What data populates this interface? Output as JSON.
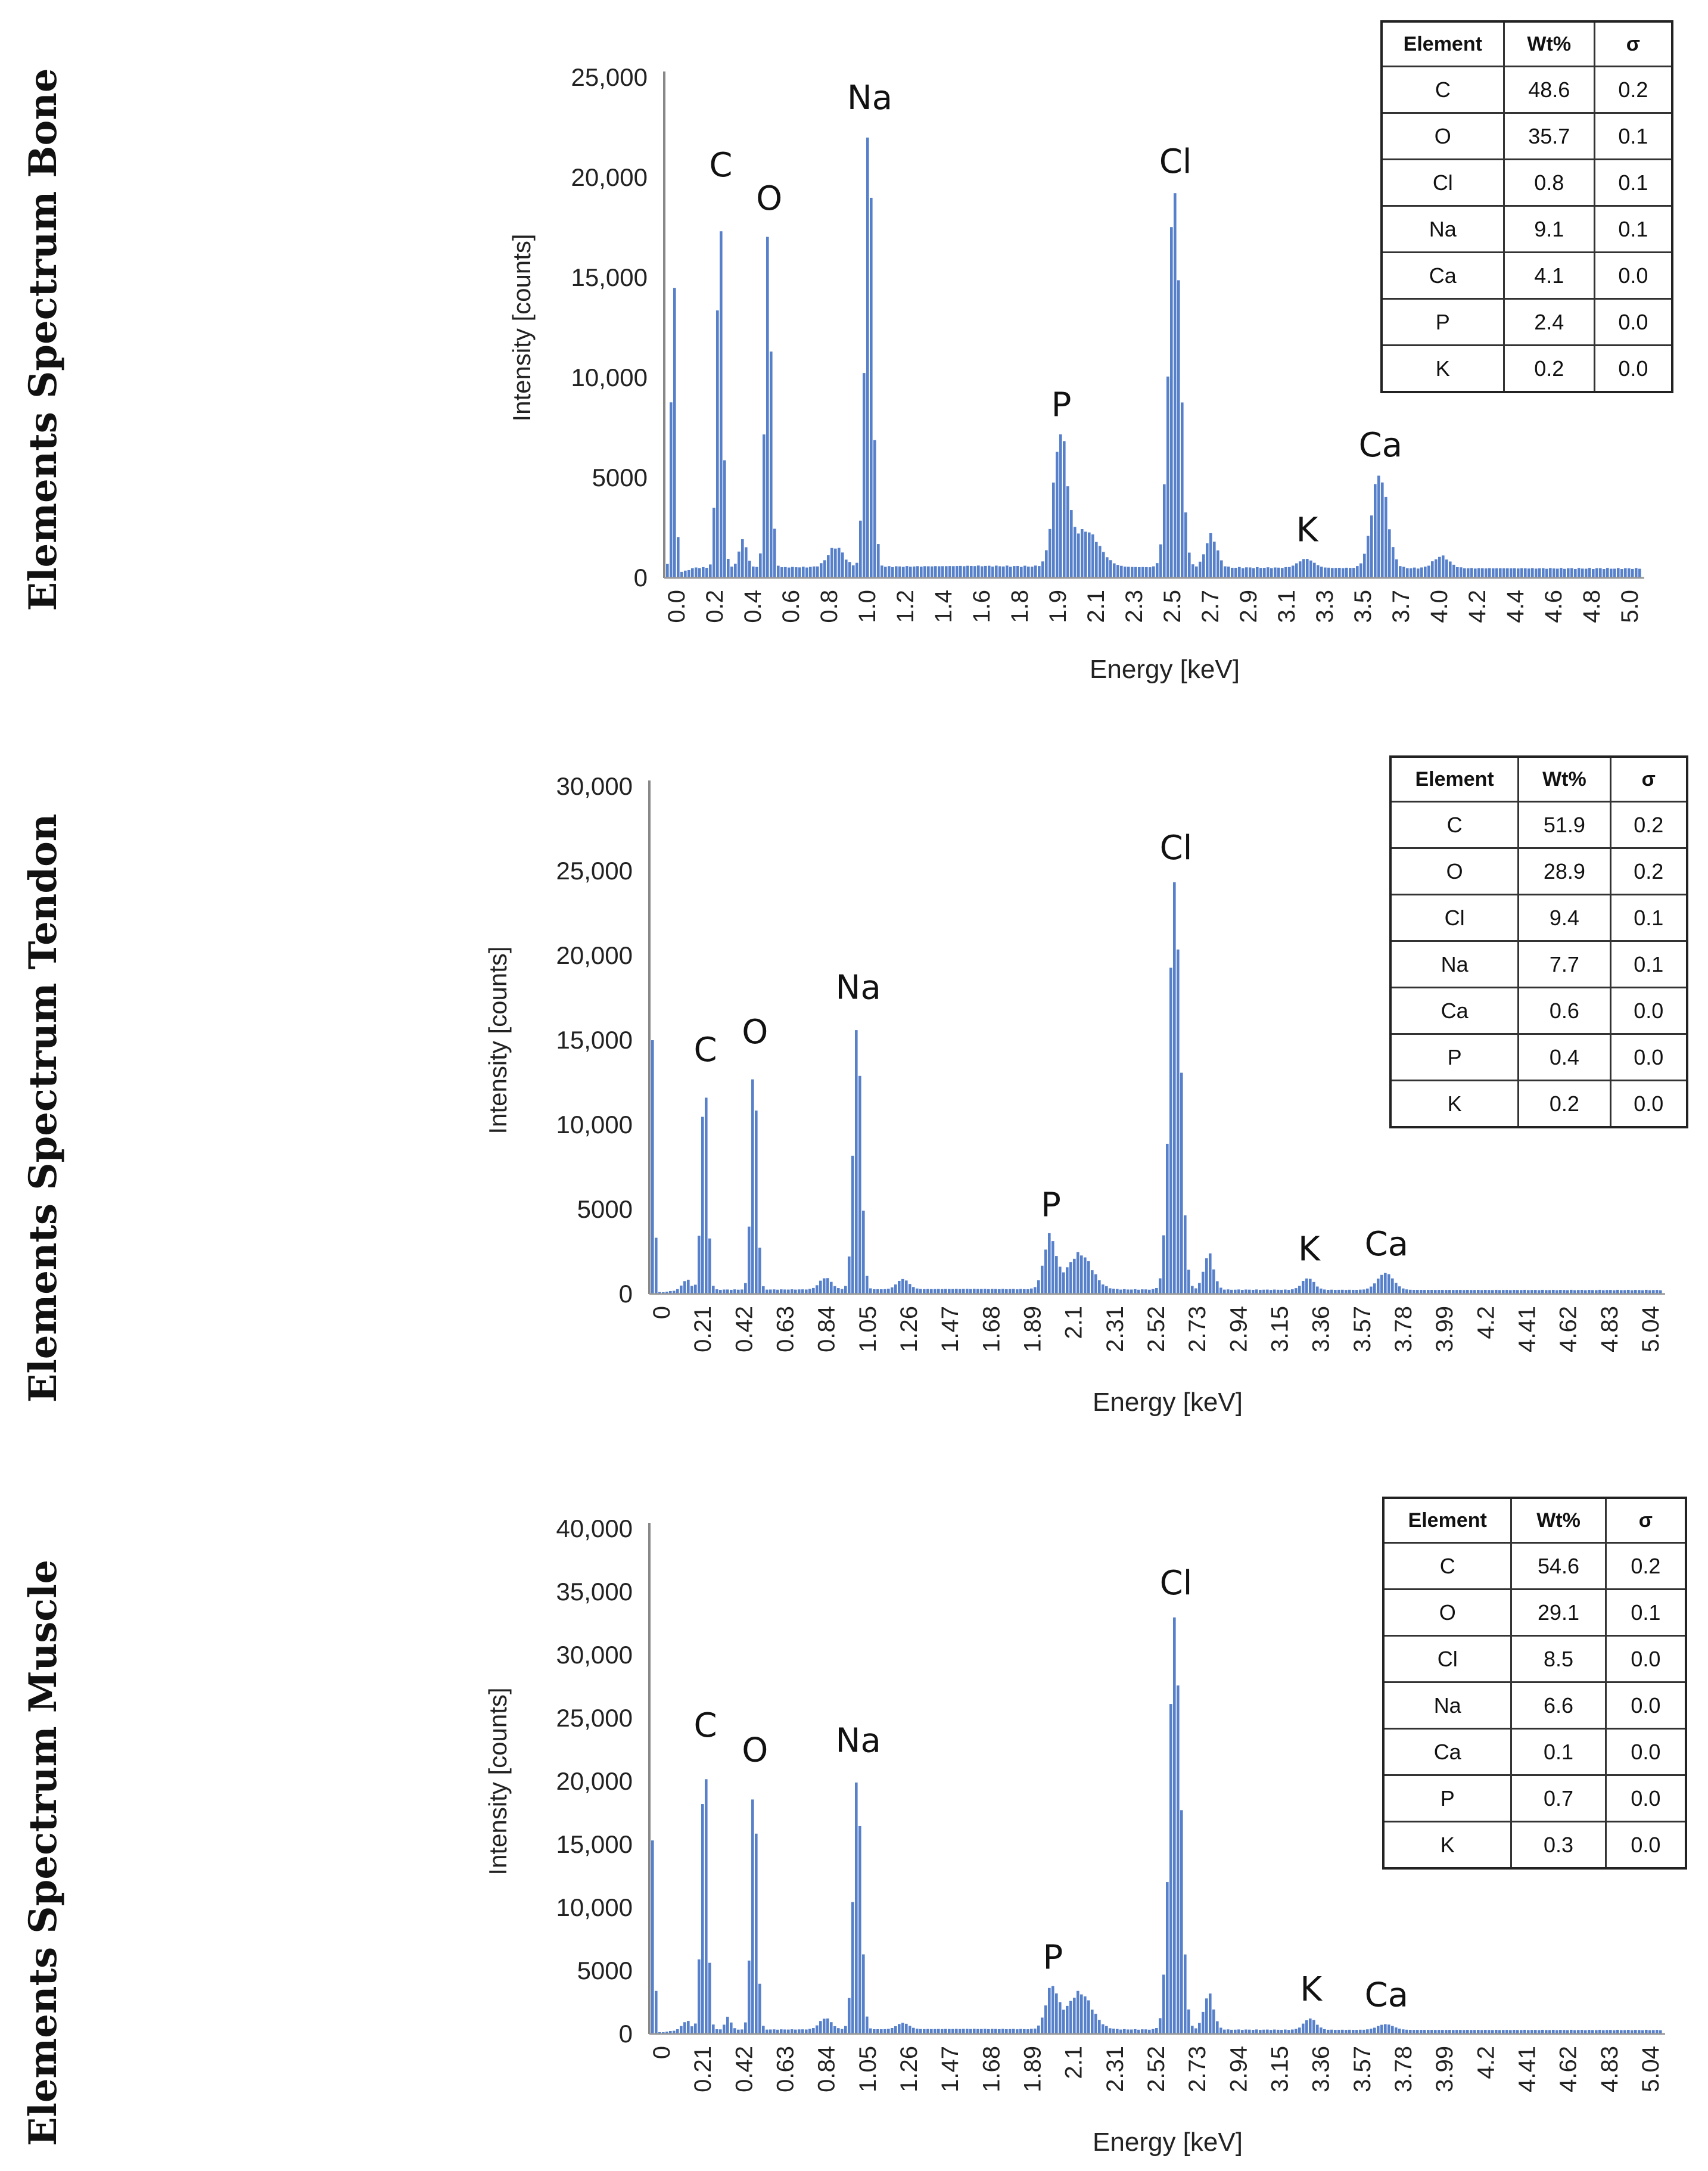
{
  "row_labels": [
    "Elements Spectrum Bone",
    "Elements Spectrum Tendon",
    "Elements Spectrum Muscle"
  ],
  "table_headers": [
    "Element",
    "Wt%",
    "σ"
  ],
  "tables": [
    [
      [
        "C",
        "48.6",
        "0.2"
      ],
      [
        "O",
        "35.7",
        "0.1"
      ],
      [
        "Cl",
        "0.8",
        "0.1"
      ],
      [
        "Na",
        "9.1",
        "0.1"
      ],
      [
        "Ca",
        "4.1",
        "0.0"
      ],
      [
        "P",
        "2.4",
        "0.0"
      ],
      [
        "K",
        "0.2",
        "0.0"
      ]
    ],
    [
      [
        "C",
        "51.9",
        "0.2"
      ],
      [
        "O",
        "28.9",
        "0.2"
      ],
      [
        "Cl",
        "9.4",
        "0.1"
      ],
      [
        "Na",
        "7.7",
        "0.1"
      ],
      [
        "Ca",
        "0.6",
        "0.0"
      ],
      [
        "P",
        "0.4",
        "0.0"
      ],
      [
        "K",
        "0.2",
        "0.0"
      ]
    ],
    [
      [
        "C",
        "54.6",
        "0.2"
      ],
      [
        "O",
        "29.1",
        "0.1"
      ],
      [
        "Cl",
        "8.5",
        "0.0"
      ],
      [
        "Na",
        "6.6",
        "0.0"
      ],
      [
        "Ca",
        "0.1",
        "0.0"
      ],
      [
        "P",
        "0.7",
        "0.0"
      ],
      [
        "K",
        "0.3",
        "0.0"
      ]
    ]
  ],
  "chart_data": [
    {
      "type": "bar",
      "title": "Elements Spectrum Bone",
      "xlabel": "Energy [keV]",
      "ylabel": "Intensity [counts]",
      "xlim": [
        0,
        5.05
      ],
      "ylim": [
        0,
        25000
      ],
      "yticks": [
        0,
        5000,
        10000,
        15000,
        20000,
        25000
      ],
      "ytick_labels": [
        "0",
        "5000",
        "10,000",
        "15,000",
        "20,000",
        "25,000"
      ],
      "xtick_labels": [
        "0.0",
        "0.2",
        "0.4",
        "0.6",
        "0.8",
        "1.0",
        "1.2",
        "1.4",
        "1.6",
        "1.8",
        "1.9",
        "2.1",
        "2.3",
        "2.5",
        "2.7",
        "2.9",
        "3.1",
        "3.3",
        "3.5",
        "3.7",
        "4.0",
        "4.2",
        "4.4",
        "4.6",
        "4.8",
        "5.0"
      ],
      "color": "#4472c4",
      "baseline_counts": 600,
      "peaks": [
        {
          "label": "",
          "x": 0.04,
          "y": 15500,
          "w": 0.012
        },
        {
          "label": "C",
          "x": 0.28,
          "y": 17800,
          "w": 0.016
        },
        {
          "label": "",
          "x": 0.4,
          "y": 1400,
          "w": 0.02
        },
        {
          "label": "O",
          "x": 0.53,
          "y": 16900,
          "w": 0.016
        },
        {
          "label": "",
          "x": 0.88,
          "y": 1000,
          "w": 0.04
        },
        {
          "label": "Na",
          "x": 1.05,
          "y": 21900,
          "w": 0.02
        },
        {
          "label": "P",
          "x": 2.04,
          "y": 6400,
          "w": 0.035
        },
        {
          "label": "",
          "x": 2.17,
          "y": 1800,
          "w": 0.07
        },
        {
          "label": "Cl",
          "x": 2.63,
          "y": 18900,
          "w": 0.03
        },
        {
          "label": "",
          "x": 2.82,
          "y": 1600,
          "w": 0.03
        },
        {
          "label": "K",
          "x": 3.31,
          "y": 450,
          "w": 0.04
        },
        {
          "label": "Ca",
          "x": 3.69,
          "y": 4700,
          "w": 0.04
        },
        {
          "label": "",
          "x": 4.01,
          "y": 600,
          "w": 0.04
        }
      ]
    },
    {
      "type": "bar",
      "title": "Elements Spectrum Tendon",
      "xlabel": "Energy [keV]",
      "ylabel": "Intensity [counts]",
      "xlim": [
        0,
        5.1
      ],
      "ylim": [
        0,
        30000
      ],
      "yticks": [
        0,
        5000,
        10000,
        15000,
        20000,
        25000,
        30000
      ],
      "ytick_labels": [
        "0",
        "5000",
        "10,000",
        "15,000",
        "20,000",
        "25,000",
        "30,000"
      ],
      "xtick_labels": [
        "0",
        "0.21",
        "0.42",
        "0.63",
        "0.84",
        "1.05",
        "1.26",
        "1.47",
        "1.68",
        "1.89",
        "2.1",
        "2.31",
        "2.52",
        "2.73",
        "2.94",
        "3.15",
        "3.36",
        "3.57",
        "3.78",
        "3.99",
        "4.2",
        "4.41",
        "4.62",
        "4.83",
        "5.04"
      ],
      "color": "#4472c4",
      "baseline_counts": 300,
      "peaks": [
        {
          "label": "",
          "x": 0.01,
          "y": 14700,
          "w": 0.01
        },
        {
          "label": "",
          "x": 0.18,
          "y": 600,
          "w": 0.02
        },
        {
          "label": "C",
          "x": 0.27,
          "y": 12700,
          "w": 0.016
        },
        {
          "label": "O",
          "x": 0.52,
          "y": 13300,
          "w": 0.016
        },
        {
          "label": "",
          "x": 0.88,
          "y": 700,
          "w": 0.03
        },
        {
          "label": "Na",
          "x": 1.04,
          "y": 15600,
          "w": 0.02
        },
        {
          "label": "",
          "x": 1.27,
          "y": 600,
          "w": 0.03
        },
        {
          "label": "P",
          "x": 2.01,
          "y": 3100,
          "w": 0.03
        },
        {
          "label": "",
          "x": 2.16,
          "y": 2100,
          "w": 0.06
        },
        {
          "label": "Cl",
          "x": 2.64,
          "y": 24200,
          "w": 0.028
        },
        {
          "label": "",
          "x": 2.81,
          "y": 2100,
          "w": 0.025
        },
        {
          "label": "K",
          "x": 3.31,
          "y": 700,
          "w": 0.03
        },
        {
          "label": "Ca",
          "x": 3.7,
          "y": 1000,
          "w": 0.04
        }
      ]
    },
    {
      "type": "bar",
      "title": "Elements Spectrum Muscle",
      "xlabel": "Energy [keV]",
      "ylabel": "Intensity [counts]",
      "xlim": [
        0,
        5.1
      ],
      "ylim": [
        0,
        40000
      ],
      "yticks": [
        0,
        5000,
        10000,
        15000,
        20000,
        25000,
        30000,
        35000,
        40000
      ],
      "ytick_labels": [
        "0",
        "5000",
        "10,000",
        "15,000",
        "20,000",
        "25,000",
        "30,000",
        "35,000",
        "40,000"
      ],
      "xtick_labels": [
        "0",
        "0.21",
        "0.42",
        "0.63",
        "0.84",
        "1.05",
        "1.26",
        "1.47",
        "1.68",
        "1.89",
        "2.1",
        "2.31",
        "2.52",
        "2.73",
        "2.94",
        "3.15",
        "3.36",
        "3.57",
        "3.78",
        "3.99",
        "4.2",
        "4.41",
        "4.62",
        "4.83",
        "5.04"
      ],
      "color": "#4472c4",
      "baseline_counts": 400,
      "peaks": [
        {
          "label": "",
          "x": 0.01,
          "y": 15000,
          "w": 0.01
        },
        {
          "label": "",
          "x": 0.18,
          "y": 700,
          "w": 0.02
        },
        {
          "label": "C",
          "x": 0.27,
          "y": 22200,
          "w": 0.016
        },
        {
          "label": "",
          "x": 0.39,
          "y": 1000,
          "w": 0.015
        },
        {
          "label": "O",
          "x": 0.52,
          "y": 19500,
          "w": 0.016
        },
        {
          "label": "",
          "x": 0.88,
          "y": 900,
          "w": 0.03
        },
        {
          "label": "Na",
          "x": 1.04,
          "y": 19900,
          "w": 0.02
        },
        {
          "label": "",
          "x": 1.27,
          "y": 500,
          "w": 0.03
        },
        {
          "label": "P",
          "x": 2.02,
          "y": 3300,
          "w": 0.03
        },
        {
          "label": "",
          "x": 2.16,
          "y": 2900,
          "w": 0.06
        },
        {
          "label": "Cl",
          "x": 2.64,
          "y": 32800,
          "w": 0.028
        },
        {
          "label": "",
          "x": 2.81,
          "y": 2800,
          "w": 0.025
        },
        {
          "label": "K",
          "x": 3.32,
          "y": 900,
          "w": 0.03
        },
        {
          "label": "Ca",
          "x": 3.7,
          "y": 450,
          "w": 0.04
        }
      ]
    }
  ]
}
